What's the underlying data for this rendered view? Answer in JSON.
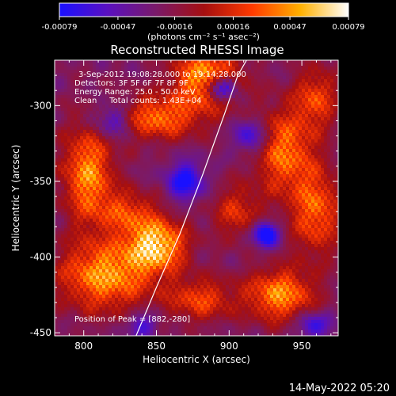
{
  "colorbar": {
    "tick_labels": [
      "-0.00079",
      "-0.00047",
      "-0.00016",
      "0.00016",
      "0.00047",
      "0.00079"
    ],
    "tick_values": [
      -0.00079,
      -0.00047,
      -0.00016,
      0.00016,
      0.00047,
      0.00079
    ],
    "range": [
      -0.00079,
      0.00079
    ],
    "unit_label": "(photons cm⁻² s⁻¹ asec⁻²)",
    "colors": [
      "#1a10ff",
      "#5a10c0",
      "#7a1a6a",
      "#a50f10",
      "#ff3a00",
      "#ffb000",
      "#ffffff"
    ]
  },
  "footer": {
    "timestamp": "14-May-2022 05:20"
  },
  "chart_data": {
    "type": "heatmap",
    "title": "Reconstructed RHESSI Image",
    "xlabel": "Heliocentric X (arcsec)",
    "ylabel": "Heliocentric Y (arcsec)",
    "xlim": [
      780,
      975
    ],
    "ylim": [
      -452,
      -270
    ],
    "x_ticks": [
      800,
      850,
      900,
      950
    ],
    "x_tick_labels": [
      "800",
      "850",
      "900",
      "950"
    ],
    "y_ticks": [
      -300,
      -350,
      -400,
      -450
    ],
    "y_tick_labels": [
      "-300",
      "-350",
      "-400",
      "-450"
    ],
    "annotations": [
      "3-Sep-2012 19:08:28.000 to 19:14:28.000",
      "Detectors: 3F 5F 6F 7F 8F 9F",
      "Energy Range: 25.0 - 50.0 keV",
      "Clean     Total counts: 1.43E+04"
    ],
    "peak_label": "Position of Peak = [882,-280]",
    "peak": [
      882,
      -280
    ],
    "limb_curve": [
      [
        836,
        -452
      ],
      [
        850,
        -420
      ],
      [
        866,
        -385
      ],
      [
        882,
        -345
      ],
      [
        897,
        -305
      ],
      [
        906,
        -280
      ],
      [
        912,
        -270
      ]
    ],
    "hot_spots": [
      {
        "x": 850,
        "y": -392,
        "a": 1.0,
        "sx": 14,
        "sy": 12
      },
      {
        "x": 815,
        "y": -412,
        "a": 0.85,
        "sx": 22,
        "sy": 16
      },
      {
        "x": 803,
        "y": -345,
        "a": 0.8,
        "sx": 12,
        "sy": 22
      },
      {
        "x": 885,
        "y": -282,
        "a": 0.9,
        "sx": 16,
        "sy": 14
      },
      {
        "x": 850,
        "y": -308,
        "a": 0.7,
        "sx": 20,
        "sy": 10
      },
      {
        "x": 938,
        "y": -330,
        "a": 0.7,
        "sx": 14,
        "sy": 20
      },
      {
        "x": 960,
        "y": -370,
        "a": 0.65,
        "sx": 12,
        "sy": 20
      },
      {
        "x": 935,
        "y": -425,
        "a": 0.8,
        "sx": 16,
        "sy": 12
      },
      {
        "x": 880,
        "y": -428,
        "a": 0.55,
        "sx": 16,
        "sy": 10
      },
      {
        "x": 905,
        "y": -370,
        "a": 0.45,
        "sx": 12,
        "sy": 12
      },
      {
        "x": 960,
        "y": -295,
        "a": 0.55,
        "sx": 10,
        "sy": 14
      },
      {
        "x": 830,
        "y": -370,
        "a": 0.5,
        "sx": 14,
        "sy": 10
      }
    ],
    "cold_spots": [
      {
        "x": 895,
        "y": -288,
        "a": -0.9,
        "sx": 7,
        "sy": 6
      },
      {
        "x": 925,
        "y": -385,
        "a": -0.8,
        "sx": 6,
        "sy": 6
      },
      {
        "x": 870,
        "y": -350,
        "a": -0.6,
        "sx": 9,
        "sy": 9
      },
      {
        "x": 915,
        "y": -320,
        "a": -0.5,
        "sx": 8,
        "sy": 8
      },
      {
        "x": 820,
        "y": -310,
        "a": -0.5,
        "sx": 10,
        "sy": 8
      },
      {
        "x": 958,
        "y": -445,
        "a": -0.5,
        "sx": 8,
        "sy": 6
      },
      {
        "x": 840,
        "y": -445,
        "a": -0.4,
        "sx": 8,
        "sy": 6
      }
    ]
  }
}
